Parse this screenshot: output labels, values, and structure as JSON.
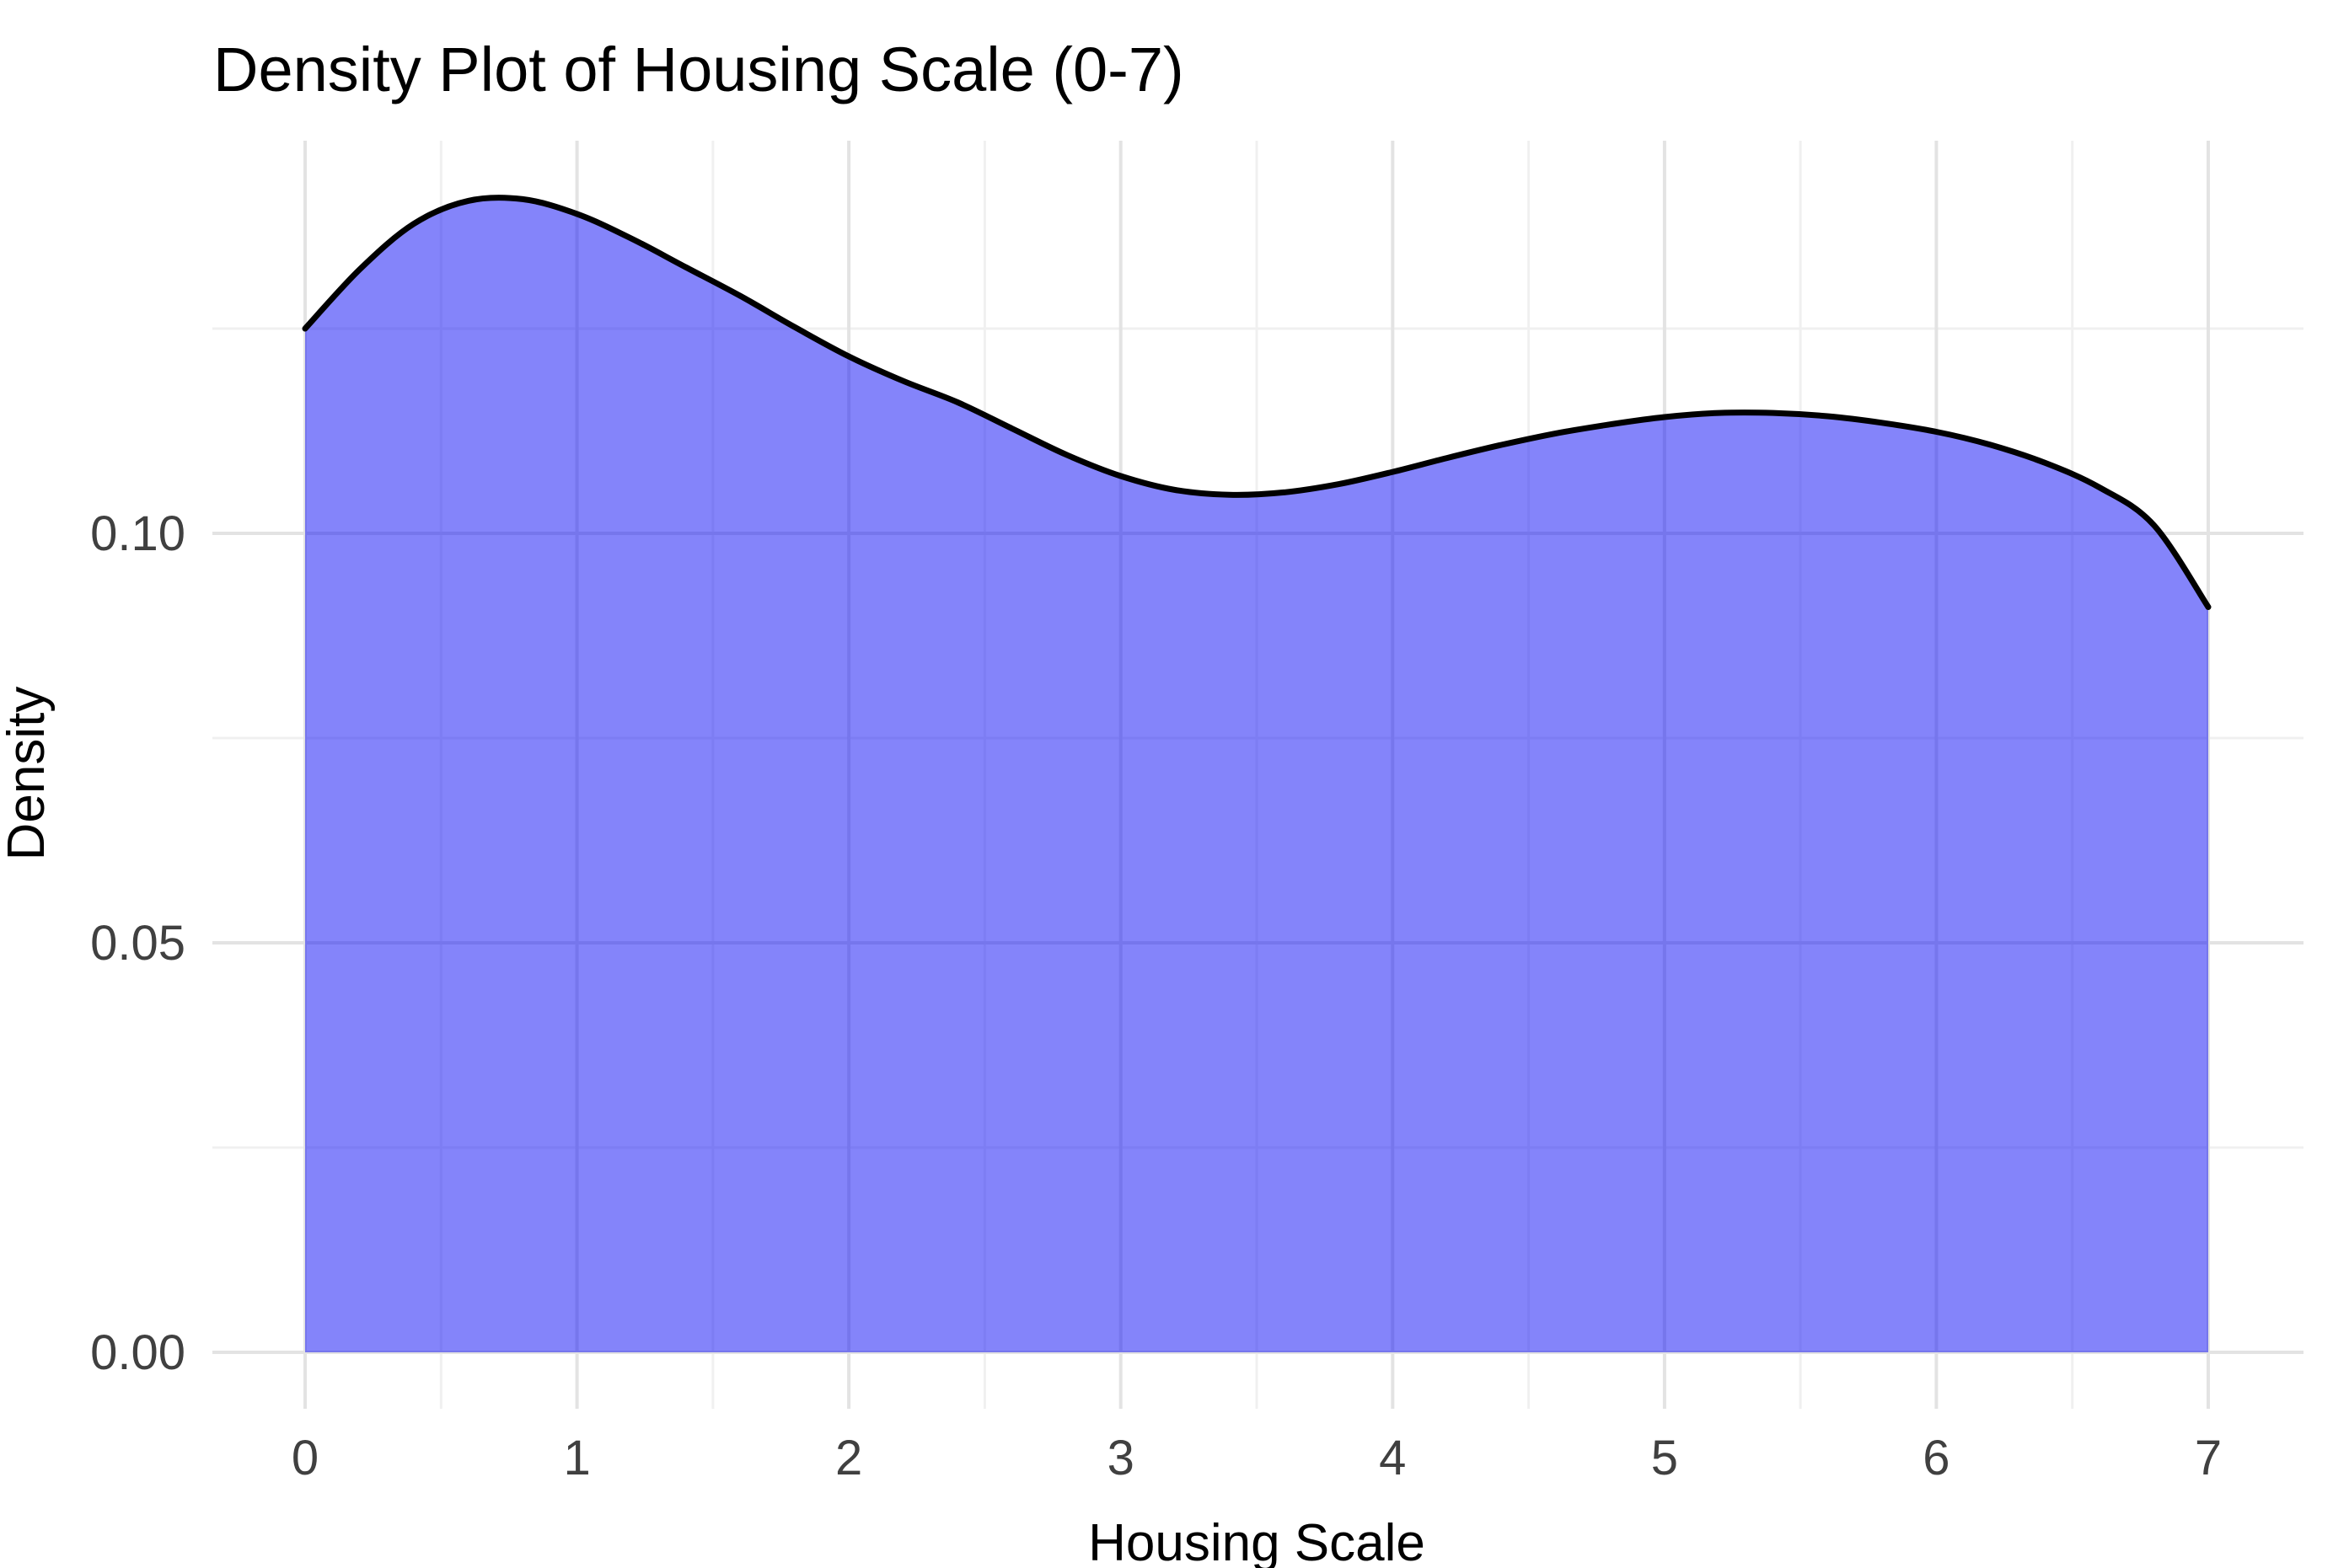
{
  "chart_data": {
    "type": "area",
    "title": "Density Plot of Housing Scale (0-7)",
    "xlabel": "Housing Scale",
    "ylabel": "Density",
    "xlim": [
      0,
      7
    ],
    "ylim": [
      0,
      0.148
    ],
    "grid": "on",
    "legend_position": "none",
    "x_ticks": {
      "values": [
        0,
        1,
        2,
        3,
        4,
        5,
        6,
        7
      ],
      "labels": [
        "0",
        "1",
        "2",
        "3",
        "4",
        "5",
        "6",
        "7"
      ],
      "minor": [
        0.5,
        1.5,
        2.5,
        3.5,
        4.5,
        5.5,
        6.5
      ]
    },
    "y_ticks": {
      "values": [
        0,
        0.05,
        0.1
      ],
      "labels": [
        "0.00",
        "0.05",
        "0.10"
      ],
      "minor": [
        0.025,
        0.075,
        0.125
      ]
    },
    "series": [
      {
        "name": "density",
        "x": [
          0.0,
          0.2,
          0.4,
          0.6,
          0.8,
          1.0,
          1.2,
          1.4,
          1.6,
          1.8,
          2.0,
          2.2,
          2.4,
          2.6,
          2.8,
          3.0,
          3.2,
          3.4,
          3.6,
          3.8,
          4.0,
          4.2,
          4.4,
          4.6,
          4.8,
          5.0,
          5.2,
          5.4,
          5.6,
          5.8,
          6.0,
          6.2,
          6.4,
          6.6,
          6.8,
          7.0
        ],
        "values": [
          0.125,
          0.1322,
          0.1378,
          0.1406,
          0.1408,
          0.139,
          0.136,
          0.1325,
          0.129,
          0.1252,
          0.1216,
          0.1186,
          0.116,
          0.1128,
          0.1096,
          0.107,
          0.1053,
          0.1047,
          0.105,
          0.106,
          0.1075,
          0.1092,
          0.1108,
          0.1122,
          0.1133,
          0.1142,
          0.1147,
          0.1147,
          0.1143,
          0.1135,
          0.1124,
          0.1108,
          0.1086,
          0.1056,
          0.101,
          0.091
        ]
      }
    ],
    "colors": {
      "fill": "rgba(10,10,245,0.5)",
      "line": "#000000",
      "grid_major": "#e3e3e3",
      "grid_minor": "#f0f0f0",
      "tick_label": "#404040",
      "text": "#000000",
      "background": "#ffffff"
    }
  }
}
